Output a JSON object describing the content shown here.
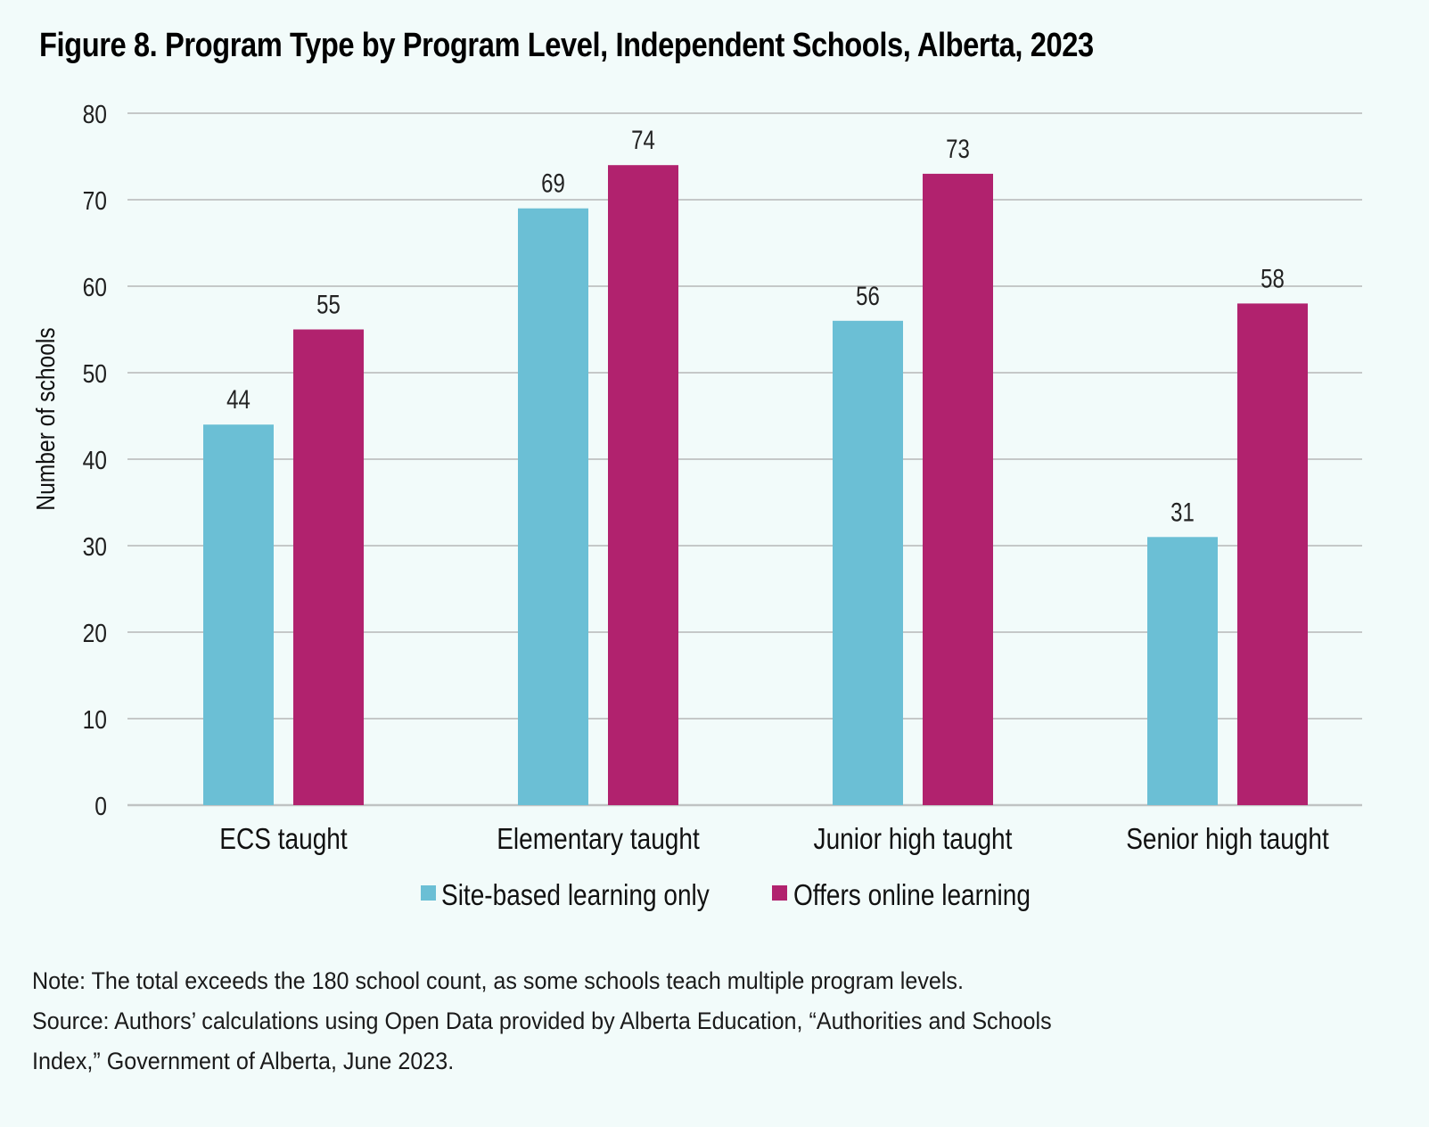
{
  "figure": {
    "title": "Figure 8. Program Type by Program Level, Independent Schools, Alberta, 2023",
    "note": "Note: The total exceeds the 180 school count, as some schools teach multiple program levels.",
    "source_line1": "Source: Authors’ calculations using Open Data provided by Alberta Education, “Authorities and Schools",
    "source_line2": "Index,” Government of Alberta, June 2023."
  },
  "chart_data": {
    "type": "bar",
    "title": "Figure 8. Program Type by Program Level, Independent Schools, Alberta, 2023",
    "xlabel": "",
    "ylabel": "Number of schools",
    "ylim": [
      0,
      80
    ],
    "yticks": [
      0,
      10,
      20,
      30,
      40,
      50,
      60,
      70,
      80
    ],
    "grid": true,
    "legend_position": "bottom",
    "categories": [
      "ECS taught",
      "Elementary taught",
      "Junior high taught",
      "Senior high taught"
    ],
    "series": [
      {
        "name": "Site-based learning only",
        "color": "#6bbfd5",
        "values": [
          44,
          69,
          56,
          31
        ]
      },
      {
        "name": "Offers online learning",
        "color": "#b1226e",
        "values": [
          55,
          74,
          73,
          58
        ]
      }
    ]
  }
}
